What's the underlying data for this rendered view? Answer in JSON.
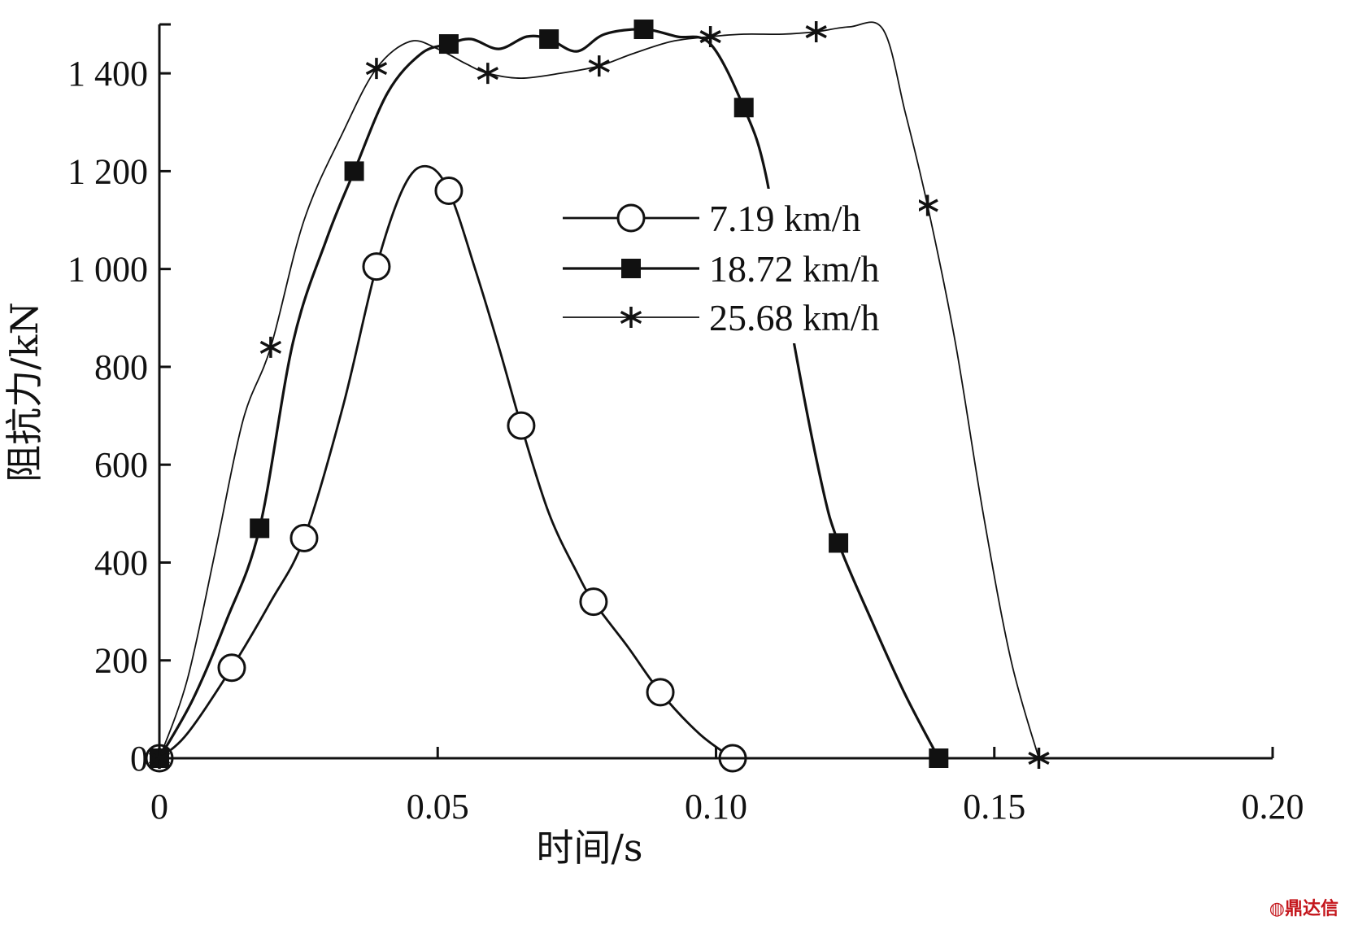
{
  "chart_data": {
    "type": "line",
    "title": "",
    "xlabel": "时间/s",
    "ylabel": "阻抗力/kN",
    "xlim": [
      0,
      0.2
    ],
    "ylim": [
      0,
      1500
    ],
    "xticks": [
      0,
      0.05,
      0.1,
      0.15,
      0.2
    ],
    "xtick_labels": [
      "0",
      "0.05",
      "0.10",
      "0.15",
      "0.20"
    ],
    "yticks": [
      0,
      200,
      400,
      600,
      800,
      1000,
      1200,
      1400
    ],
    "ytick_labels": [
      "0",
      "200",
      "400",
      "600",
      "800",
      "1 000",
      "1 200",
      "1 400"
    ],
    "grid": false,
    "legend_position": "center-right",
    "series": [
      {
        "name": "7.19 km/h",
        "marker": "open-circle",
        "color": "#111111",
        "x": [
          0,
          0.005,
          0.013,
          0.02,
          0.026,
          0.033,
          0.039,
          0.044,
          0.048,
          0.052,
          0.057,
          0.061,
          0.065,
          0.07,
          0.075,
          0.078,
          0.084,
          0.09,
          0.097,
          0.103
        ],
        "y": [
          0,
          50,
          185,
          320,
          450,
          720,
          1005,
          1170,
          1210,
          1160,
          990,
          840,
          680,
          500,
          380,
          320,
          230,
          135,
          50,
          0
        ],
        "marker_x": [
          0,
          0.013,
          0.026,
          0.039,
          0.052,
          0.065,
          0.078,
          0.09,
          0.103
        ],
        "marker_y": [
          0,
          185,
          450,
          1005,
          1160,
          680,
          320,
          135,
          0
        ]
      },
      {
        "name": "18.72 km/h",
        "marker": "filled-square",
        "color": "#111111",
        "x": [
          0,
          0.006,
          0.012,
          0.018,
          0.024,
          0.03,
          0.035,
          0.041,
          0.047,
          0.052,
          0.056,
          0.061,
          0.066,
          0.07,
          0.075,
          0.08,
          0.087,
          0.093,
          0.099,
          0.105,
          0.109,
          0.114,
          0.119,
          0.122,
          0.128,
          0.134,
          0.14
        ],
        "y": [
          0,
          120,
          280,
          470,
          850,
          1060,
          1200,
          1360,
          1440,
          1460,
          1470,
          1450,
          1475,
          1470,
          1445,
          1480,
          1490,
          1475,
          1460,
          1330,
          1190,
          850,
          560,
          440,
          280,
          130,
          0
        ],
        "marker_x": [
          0,
          0.018,
          0.035,
          0.052,
          0.07,
          0.087,
          0.105,
          0.122,
          0.14
        ],
        "marker_y": [
          0,
          470,
          1200,
          1460,
          1470,
          1490,
          1330,
          440,
          0
        ]
      },
      {
        "name": "25.68 km/h",
        "marker": "asterisk",
        "color": "#111111",
        "x": [
          0,
          0.005,
          0.01,
          0.015,
          0.02,
          0.026,
          0.033,
          0.039,
          0.045,
          0.05,
          0.055,
          0.059,
          0.065,
          0.072,
          0.079,
          0.085,
          0.092,
          0.099,
          0.105,
          0.112,
          0.118,
          0.124,
          0.13,
          0.134,
          0.138,
          0.143,
          0.148,
          0.153,
          0.158
        ],
        "y": [
          0,
          160,
          420,
          690,
          840,
          1100,
          1280,
          1410,
          1465,
          1450,
          1420,
          1400,
          1390,
          1400,
          1415,
          1440,
          1465,
          1475,
          1480,
          1480,
          1485,
          1495,
          1490,
          1320,
          1130,
          850,
          500,
          200,
          0
        ],
        "marker_x": [
          0,
          0.02,
          0.039,
          0.059,
          0.079,
          0.099,
          0.118,
          0.138,
          0.158
        ],
        "marker_y": [
          0,
          840,
          1410,
          1400,
          1415,
          1475,
          1485,
          1130,
          0
        ]
      }
    ]
  }
}
